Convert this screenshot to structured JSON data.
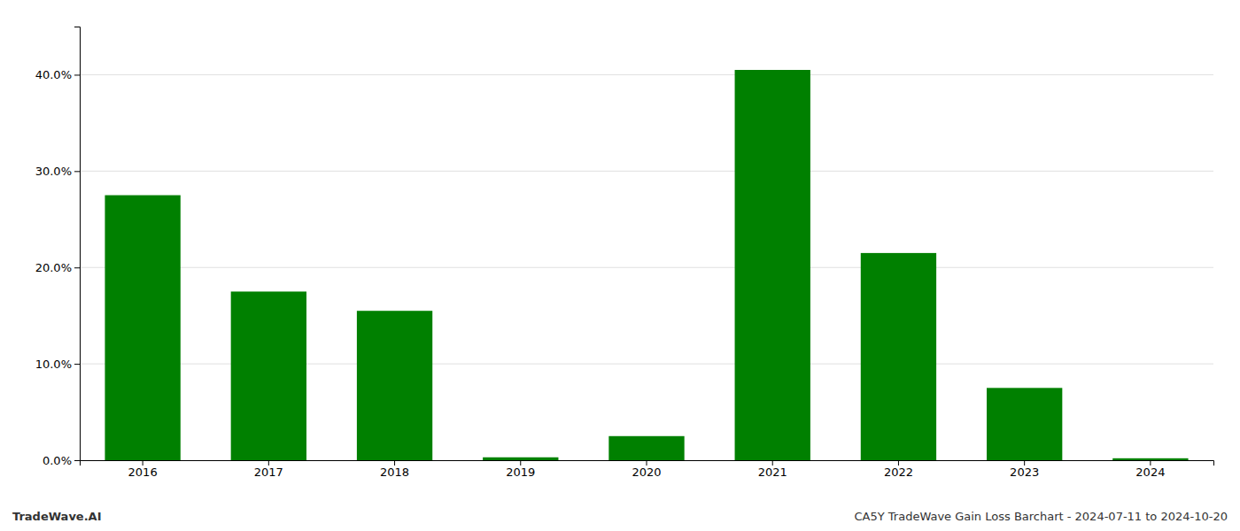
{
  "chart_data": {
    "type": "bar",
    "categories": [
      "2016",
      "2017",
      "2018",
      "2019",
      "2020",
      "2021",
      "2022",
      "2023",
      "2024"
    ],
    "values": [
      0.275,
      0.175,
      0.155,
      0.003,
      0.025,
      0.405,
      0.215,
      0.075,
      0.002
    ],
    "color": "#008000",
    "ylim": [
      0,
      0.45
    ],
    "yticks": [
      {
        "value": 0.0,
        "label": "0.0%"
      },
      {
        "value": 0.1,
        "label": "10.0%"
      },
      {
        "value": 0.2,
        "label": "20.0%"
      },
      {
        "value": 0.3,
        "label": "30.0%"
      },
      {
        "value": 0.4,
        "label": "40.0%"
      }
    ],
    "grid": true,
    "annotations": [
      "TradeWave.AI",
      "CA5Y TradeWave Gain Loss Barchart - 2024-07-11 to 2024-10-20"
    ]
  }
}
